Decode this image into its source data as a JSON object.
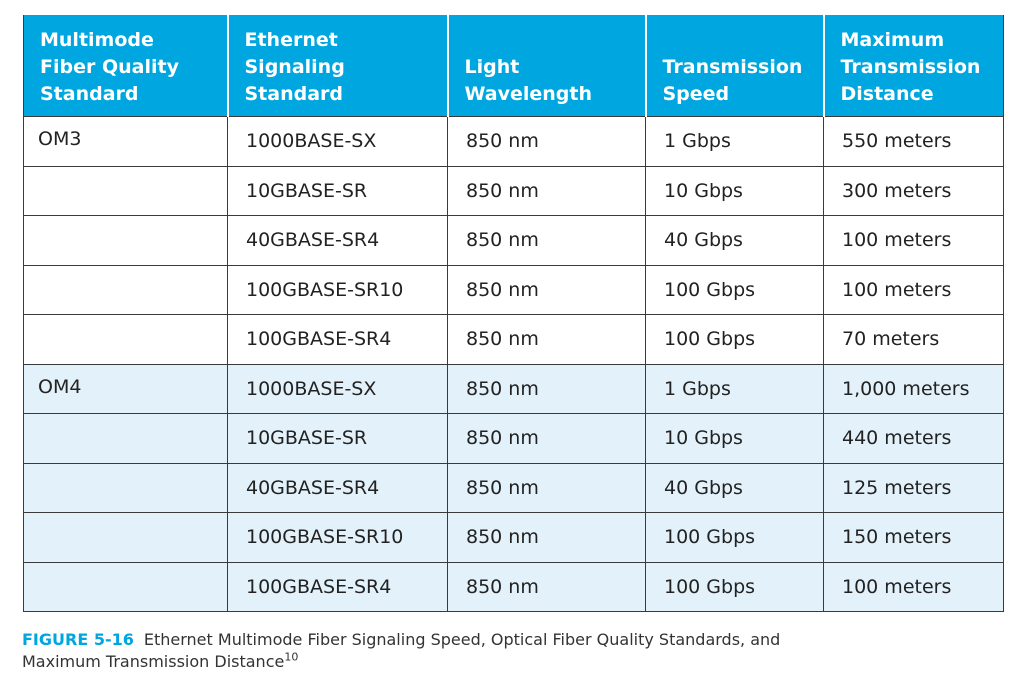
{
  "table": {
    "headers": [
      [
        "Multimode",
        "Fiber Quality",
        "Standard"
      ],
      [
        "Ethernet",
        "Signaling",
        "Standard"
      ],
      [
        "Light",
        "Wavelength"
      ],
      [
        "Transmission",
        "Speed"
      ],
      [
        "Maximum",
        "Transmission",
        "Distance"
      ]
    ],
    "rows": [
      [
        "OM3",
        "1000BASE-SX",
        "850 nm",
        "1 Gbps",
        "550 meters"
      ],
      [
        "",
        "10GBASE-SR",
        "850 nm",
        "10 Gbps",
        "300 meters"
      ],
      [
        "",
        "40GBASE-SR4",
        "850 nm",
        "40 Gbps",
        "100 meters"
      ],
      [
        "",
        "100GBASE-SR10",
        "850 nm",
        "100 Gbps",
        "100 meters"
      ],
      [
        "",
        "100GBASE-SR4",
        "850 nm",
        "100 Gbps",
        "70 meters"
      ],
      [
        "OM4",
        "1000BASE-SX",
        "850 nm",
        "1 Gbps",
        "1,000 meters"
      ],
      [
        "",
        "10GBASE-SR",
        "850 nm",
        "10 Gbps",
        "440 meters"
      ],
      [
        "",
        "40GBASE-SR4",
        "850 nm",
        "40 Gbps",
        "125 meters"
      ],
      [
        "",
        "100GBASE-SR10",
        "850 nm",
        "100 Gbps",
        "150 meters"
      ],
      [
        "",
        "100GBASE-SR4",
        "850 nm",
        "100 Gbps",
        "100 meters"
      ]
    ]
  },
  "caption": {
    "label": "FIGURE 5-16",
    "text_line1": "Ethernet Multimode Fiber Signaling Speed, Optical Fiber Quality Standards, and",
    "text_line2": "Maximum Transmission Distance",
    "footnote": "10"
  },
  "colors": {
    "header_bg": "#00a6df",
    "om4_row_bg": "#e3f2fa",
    "caption_label": "#00a6df"
  }
}
